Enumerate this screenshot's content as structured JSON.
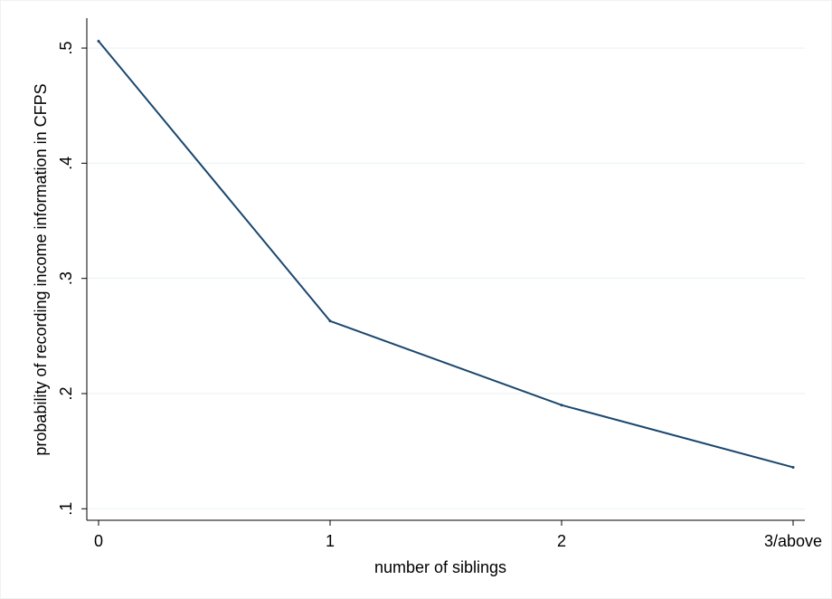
{
  "chart_data": {
    "type": "line",
    "x_label": "number of siblings",
    "y_label": "probability of recording income information in CFPS",
    "categories": [
      "0",
      "1",
      "2",
      "3/above"
    ],
    "values": [
      0.506,
      0.263,
      0.19,
      0.136
    ],
    "color": "#1a476f",
    "ylim": [
      0.09,
      0.526
    ],
    "yticks": [
      {
        "value": 0.1,
        "label": ".1"
      },
      {
        "value": 0.2,
        "label": ".2"
      },
      {
        "value": 0.3,
        "label": ".3"
      },
      {
        "value": 0.4,
        "label": ".4"
      },
      {
        "value": 0.5,
        "label": ".5"
      }
    ],
    "grid": true
  }
}
